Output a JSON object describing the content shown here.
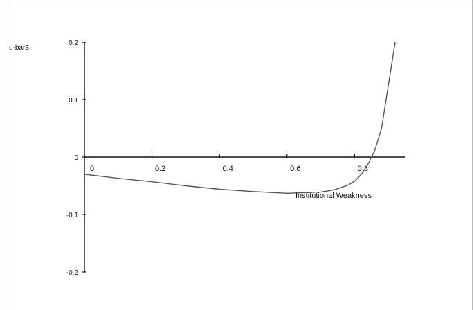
{
  "chart_data": {
    "type": "line",
    "xlabel": "Institutional Weakness",
    "ylabel": "u-bar3",
    "xlim": [
      0,
      0.95
    ],
    "ylim": [
      -0.2,
      0.2
    ],
    "x_ticks": [
      0,
      0.2,
      0.4,
      0.6,
      0.8
    ],
    "x_tick_labels": [
      "0",
      "0.2",
      "0.4",
      "0.6",
      "0.8"
    ],
    "y_ticks": [
      0.2,
      0.1,
      0,
      -0.1,
      -0.2
    ],
    "y_tick_labels": [
      "0.2",
      "0.1",
      "0",
      "-0.1",
      "-0.2"
    ],
    "grid": false,
    "x_axis_position": "y=0",
    "series": [
      {
        "color": "#555555",
        "x": [
          0,
          0.1,
          0.2,
          0.3,
          0.4,
          0.5,
          0.6,
          0.7,
          0.74,
          0.78,
          0.8,
          0.82,
          0.84,
          0.86,
          0.88,
          0.92
        ],
        "y": [
          -0.03,
          -0.037,
          -0.043,
          -0.05,
          -0.056,
          -0.06,
          -0.063,
          -0.061,
          -0.057,
          -0.049,
          -0.042,
          -0.03,
          -0.012,
          0.012,
          0.05,
          0.2
        ]
      }
    ]
  }
}
